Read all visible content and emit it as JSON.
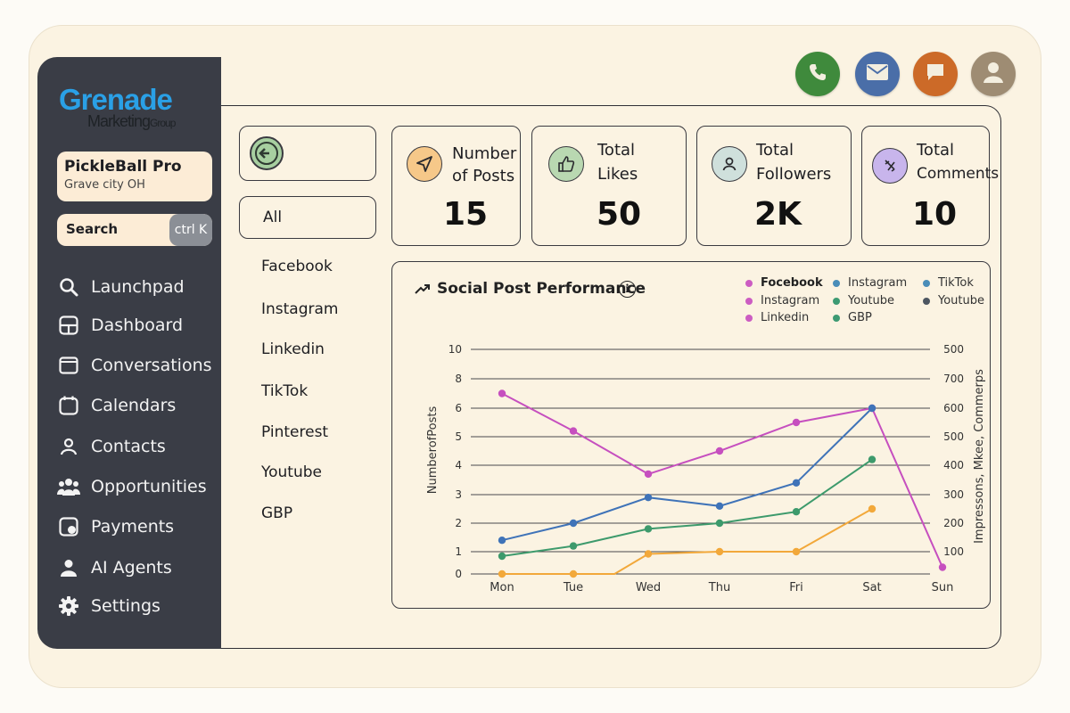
{
  "brand": {
    "line1": "Grenade",
    "line2": "Marketing",
    "line2_small": "Group"
  },
  "location": {
    "name": "PickleBall Pro",
    "city": "Grave city OH"
  },
  "search": {
    "label": "Search",
    "shortcut": "ctrl K"
  },
  "nav": [
    {
      "label": "Launchpad",
      "icon": "search-icon"
    },
    {
      "label": "Dashboard",
      "icon": "dashboard-icon"
    },
    {
      "label": "Conversations",
      "icon": "chat-icon"
    },
    {
      "label": "Calendars",
      "icon": "calendar-icon"
    },
    {
      "label": "Contacts",
      "icon": "person-icon"
    },
    {
      "label": "Opportunities",
      "icon": "people-icon"
    },
    {
      "label": "Payments",
      "icon": "payment-icon"
    },
    {
      "label": "AI Agents",
      "icon": "person-icon"
    },
    {
      "label": "Settings",
      "icon": "gear-icon"
    }
  ],
  "top_icons": [
    {
      "name": "phone-icon",
      "color": "#3f8a3c"
    },
    {
      "name": "mail-icon",
      "color": "#4a6ea8"
    },
    {
      "name": "chat-icon",
      "color": "#cc6a28"
    },
    {
      "name": "avatar-icon",
      "color": "#9e8c73"
    }
  ],
  "filters": {
    "selected": "All",
    "items": [
      "Facebook",
      "Instagram",
      "Linkedin",
      "TikTok",
      "Pinterest",
      "Youtube",
      "GBP"
    ]
  },
  "stats": [
    {
      "line1": "Number",
      "line2": "of Posts",
      "value": "15",
      "icon": "send-icon",
      "icon_bg": "#f6c889"
    },
    {
      "line1": "Total",
      "line2": "Likes",
      "value": "50",
      "icon": "thumbs-up-icon",
      "icon_bg": "#b9d8b1"
    },
    {
      "line1": "Total",
      "line2": "Followers",
      "value": "2K",
      "icon": "person-icon",
      "icon_bg": "#cfe0dc"
    },
    {
      "line1": "Total",
      "line2": "Comments",
      "value": "10",
      "icon": "comment-icon",
      "icon_bg": "#c8b5ec"
    }
  ],
  "chart_data": {
    "type": "line",
    "title": "Social Post Performance",
    "ylabel": "NumberofPosts",
    "y2label": "Impressons, Mkee, Commerps",
    "categories": [
      "Mon",
      "Tue",
      "Wed",
      "Thu",
      "Fri",
      "Sat",
      "Sun"
    ],
    "y_ticks": [
      "0",
      "1",
      "2",
      "3",
      "4",
      "5",
      "6",
      "8",
      "10"
    ],
    "y2_ticks": [
      "",
      "100",
      "200",
      "300",
      "400",
      "500",
      "600",
      "700",
      "500"
    ],
    "grid": true,
    "legend": [
      {
        "name": "Focebook",
        "color": "#cc5cc2",
        "bold": true
      },
      {
        "name": "Instagram",
        "color": "#4a8db8"
      },
      {
        "name": "TikTok",
        "color": "#4a8db8"
      },
      {
        "name": "Instagram",
        "color": "#cc5cc2"
      },
      {
        "name": "Youtube",
        "color": "#3d9a72"
      },
      {
        "name": "Youtube",
        "color": "#4d5661"
      },
      {
        "name": "Linkedin",
        "color": "#cc5cc2"
      },
      {
        "name": "GBP",
        "color": "#3d9a72"
      }
    ],
    "series": [
      {
        "color": "#c64fbf",
        "points": [
          [
            0,
            7
          ],
          [
            1,
            5.2
          ],
          [
            2,
            3.7
          ],
          [
            3,
            4.5
          ],
          [
            4,
            5.5
          ],
          [
            5,
            6
          ],
          [
            6,
            0.3
          ]
        ]
      },
      {
        "color": "#3f73b8",
        "points": [
          [
            0,
            1.4
          ],
          [
            1,
            2
          ],
          [
            2,
            2.9
          ],
          [
            3,
            2.6
          ],
          [
            4,
            3.4
          ],
          [
            5,
            6
          ]
        ]
      },
      {
        "color": "#3d9a6c",
        "points": [
          [
            0,
            0.8
          ],
          [
            1,
            1.2
          ],
          [
            2,
            1.8
          ],
          [
            3,
            2
          ],
          [
            4,
            2.4
          ],
          [
            5,
            4.2
          ]
        ]
      },
      {
        "color": "#f2a83a",
        "points": [
          [
            0,
            0
          ],
          [
            1,
            0
          ],
          [
            1.55,
            0
          ],
          [
            2,
            0.9
          ],
          [
            3,
            1
          ],
          [
            4,
            1
          ],
          [
            5,
            2.5
          ]
        ]
      }
    ]
  }
}
